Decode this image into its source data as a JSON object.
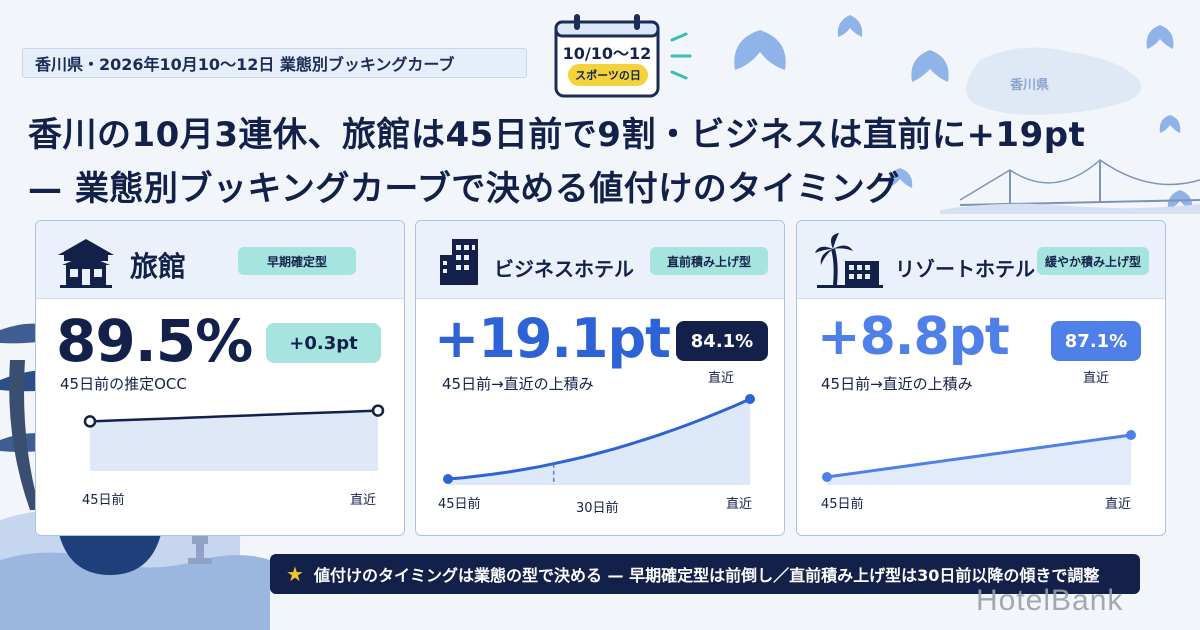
{
  "tagline": "香川県・2026年10月10〜12日 業態別ブッキングカーブ",
  "calendar": {
    "dates": "10/10〜12",
    "holiday": "スポーツの日",
    "icon": "calendar-icon"
  },
  "map_label": "香川県",
  "headline": {
    "line1": "香川の10月3連休、旅館は45日前で9割・ビジネスは直前に+19pt",
    "line2": "— 業態別ブッキングカーブで決める値付けのタイミング"
  },
  "cards": [
    {
      "title": "旅館",
      "icon": "ryokan-icon",
      "type": "早期確定型",
      "big_value": "89.5%",
      "big_label": "45日前の推定OCC",
      "change": "+0.3pt",
      "curve_start": 89.5,
      "curve_end": 89.8,
      "axis_start": "45日前",
      "axis_end": "直近"
    },
    {
      "title": "ビジネスホテル",
      "icon": "building-icon",
      "type": "直前積み上げ型",
      "big_value": "+19.1pt",
      "big_label": "45日前→直近の上積み",
      "late_value": "84.1%",
      "late_label": "直近",
      "curve_start": 65.0,
      "curve_end": 84.1,
      "axis_start": "45日前",
      "axis_mid": "30日前",
      "axis_end": "直近"
    },
    {
      "title": "リゾートホテル",
      "icon": "palm-tree-icon",
      "type": "緩やか積み上げ型",
      "big_value": "+8.8pt",
      "big_label": "45日前→直近の上積み",
      "late_value": "87.1%",
      "late_label": "直近",
      "curve_start": 78.3,
      "curve_end": 87.1,
      "axis_start": "45日前",
      "axis_end": "直近"
    }
  ],
  "footer": "値付けのタイミングは業態の型で決める — 早期確定型は前倒し／直前積み上げ型は30日前以降の傾きで調整",
  "footer_icon": "star-icon",
  "logo": "HotelBank",
  "colors": {
    "navy": "#13214a",
    "blue": "#2d63d6",
    "mid_blue": "#4f7fe8",
    "teal_badge": "#a6e4df",
    "yellow": "#f4d23c"
  }
}
